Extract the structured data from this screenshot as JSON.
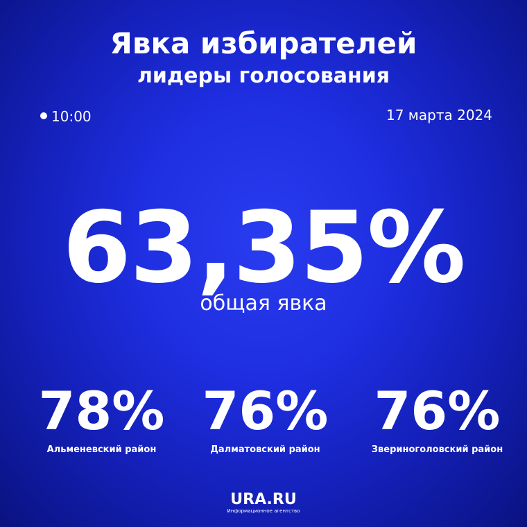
{
  "header": {
    "title": "Явка избирателей",
    "subtitle": "лидеры голосования"
  },
  "time": "10:00",
  "date": "17 марта 2024",
  "total": {
    "value": "63,35%",
    "label": "общая явка"
  },
  "leaders": [
    {
      "value": "78%",
      "label": "Альменевский район"
    },
    {
      "value": "76%",
      "label": "Далматовский район"
    },
    {
      "value": "76%",
      "label": "Звериноголовский район"
    }
  ],
  "footer": {
    "brand": "URA.RU",
    "tagline": "Информационное агентство"
  }
}
